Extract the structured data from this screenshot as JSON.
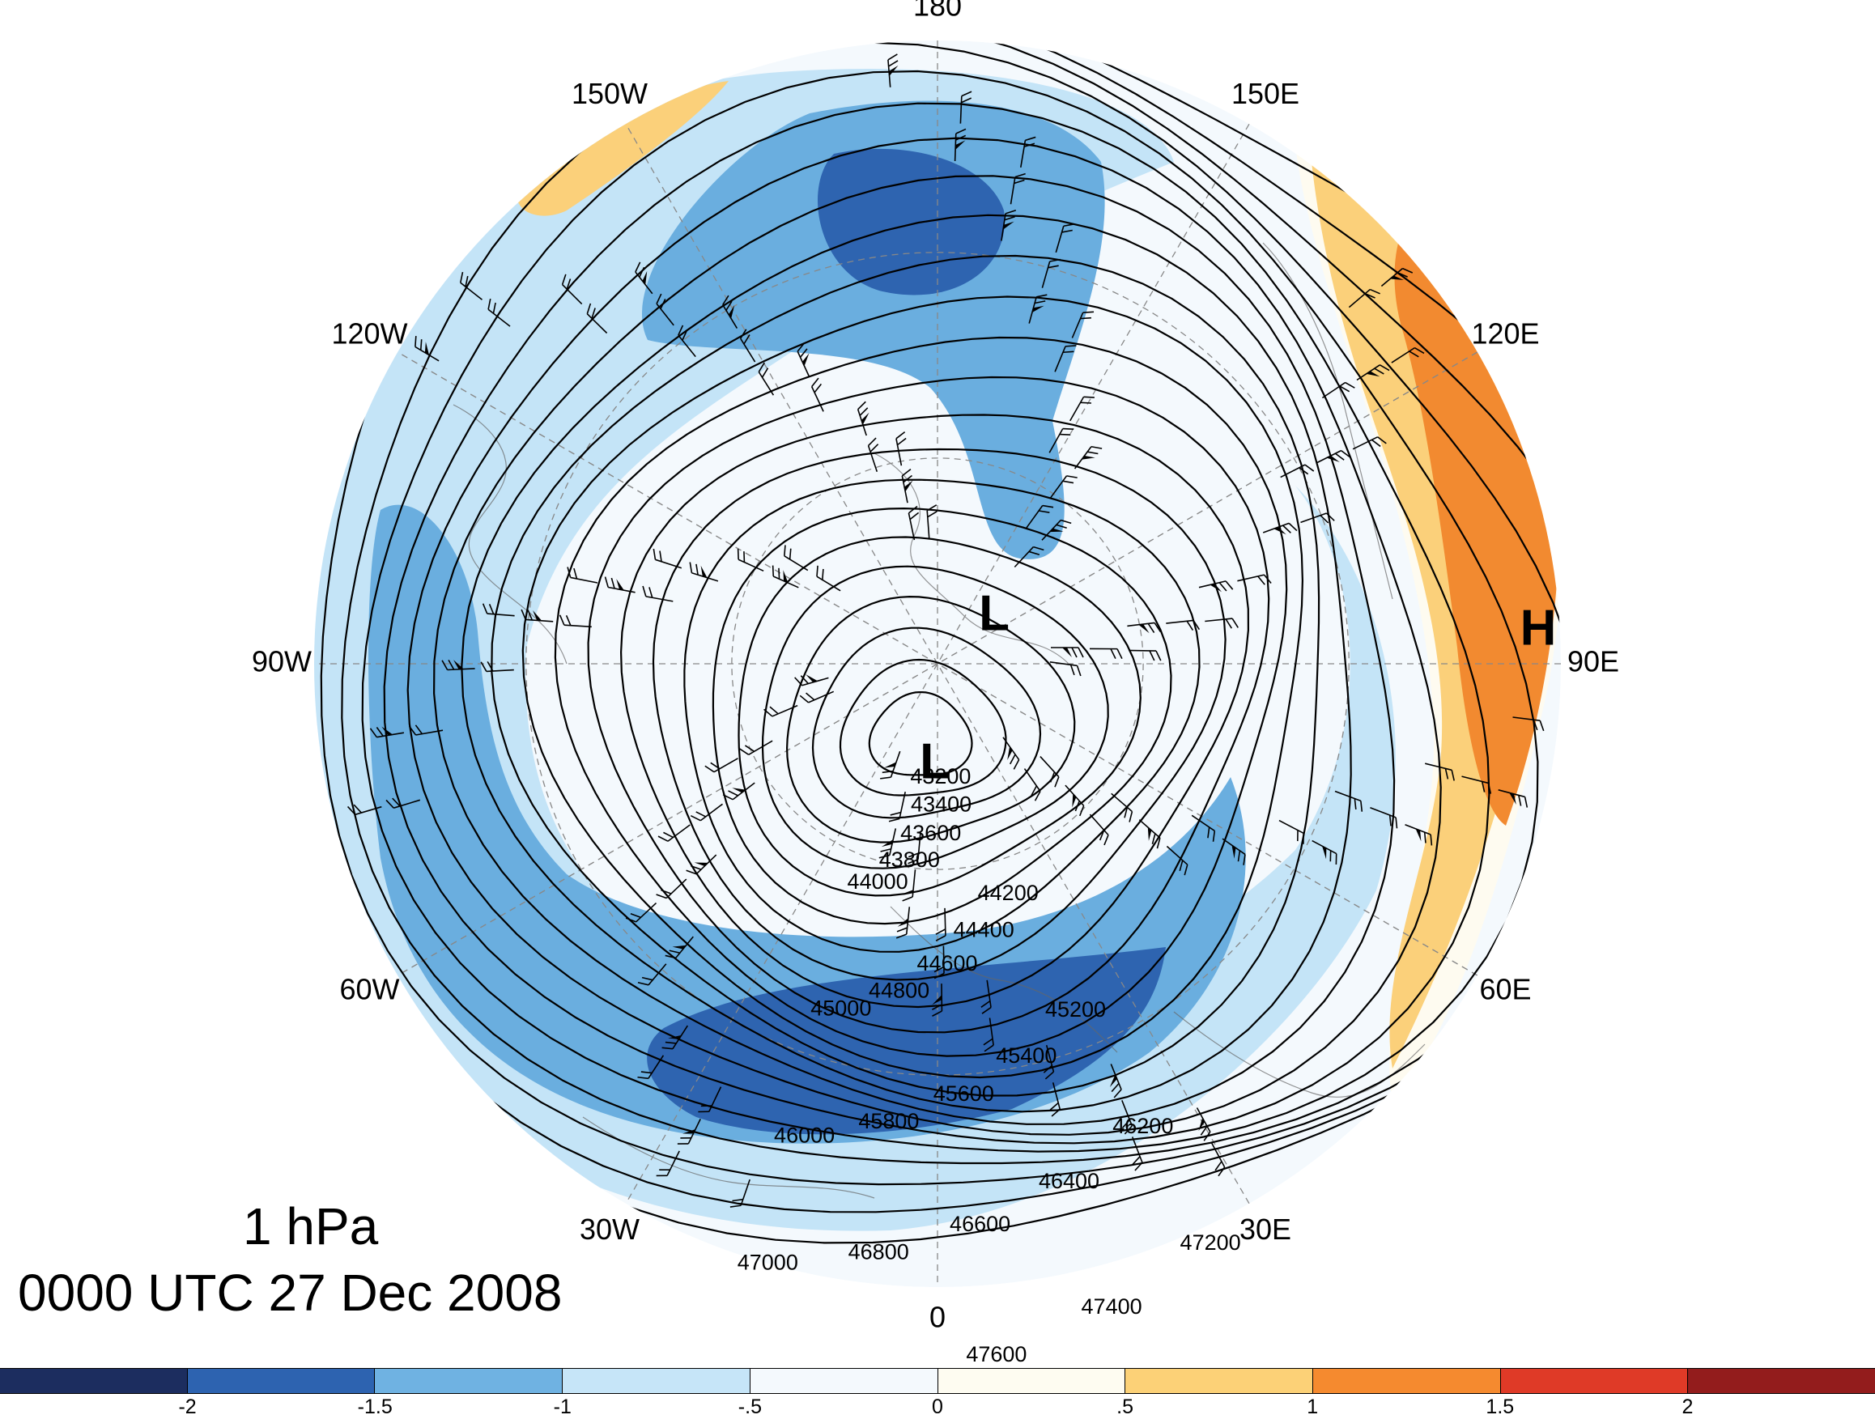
{
  "map": {
    "title_level": "1 hPa",
    "title_time": "0000 UTC 27 Dec 2008",
    "projection": "north-polar-stereographic",
    "longitude_labels": [
      {
        "text": "180",
        "lon": 180
      },
      {
        "text": "150E",
        "lon": 150
      },
      {
        "text": "120E",
        "lon": 120
      },
      {
        "text": "90E",
        "lon": 90
      },
      {
        "text": "60E",
        "lon": 60
      },
      {
        "text": "30E",
        "lon": 30
      },
      {
        "text": "0",
        "lon": 0
      },
      {
        "text": "30W",
        "lon": -30
      },
      {
        "text": "60W",
        "lon": -60
      },
      {
        "text": "90W",
        "lon": -90
      },
      {
        "text": "120W",
        "lon": -120
      },
      {
        "text": "150W",
        "lon": -150
      }
    ],
    "pressure_centers": [
      {
        "label": "L",
        "type": "low"
      },
      {
        "label": "L",
        "type": "low"
      },
      {
        "label": "H",
        "type": "high"
      }
    ],
    "contour_labels": [
      "43200",
      "43400",
      "43600",
      "43800",
      "44000",
      "44200",
      "44400",
      "44600",
      "44800",
      "45000",
      "45200",
      "45400",
      "45600",
      "45800",
      "46000",
      "46200",
      "46400",
      "46600",
      "46800",
      "47000",
      "47200",
      "47400",
      "47600"
    ],
    "contour_interval": 200,
    "contour_units": "gpm",
    "shading_colors": [
      "#1b2d5c",
      "#2e64b0",
      "#6aaedf",
      "#c4e4f7",
      "#f4f9fd",
      "#fefbf0",
      "#fbd07a",
      "#f28a30",
      "#de3a26",
      "#941d1d"
    ]
  },
  "colorbar": {
    "ticks": [
      "-2",
      "-1.5",
      "-1",
      "-.5",
      "0",
      ".5",
      "1",
      "1.5",
      "2"
    ],
    "colors": [
      "#1c2d5f",
      "#2d63b0",
      "#6fb2e2",
      "#c6e5f8",
      "#f4f9fd",
      "#fefcf1",
      "#fcd177",
      "#f58a2f",
      "#df3a27",
      "#931c1c"
    ]
  }
}
